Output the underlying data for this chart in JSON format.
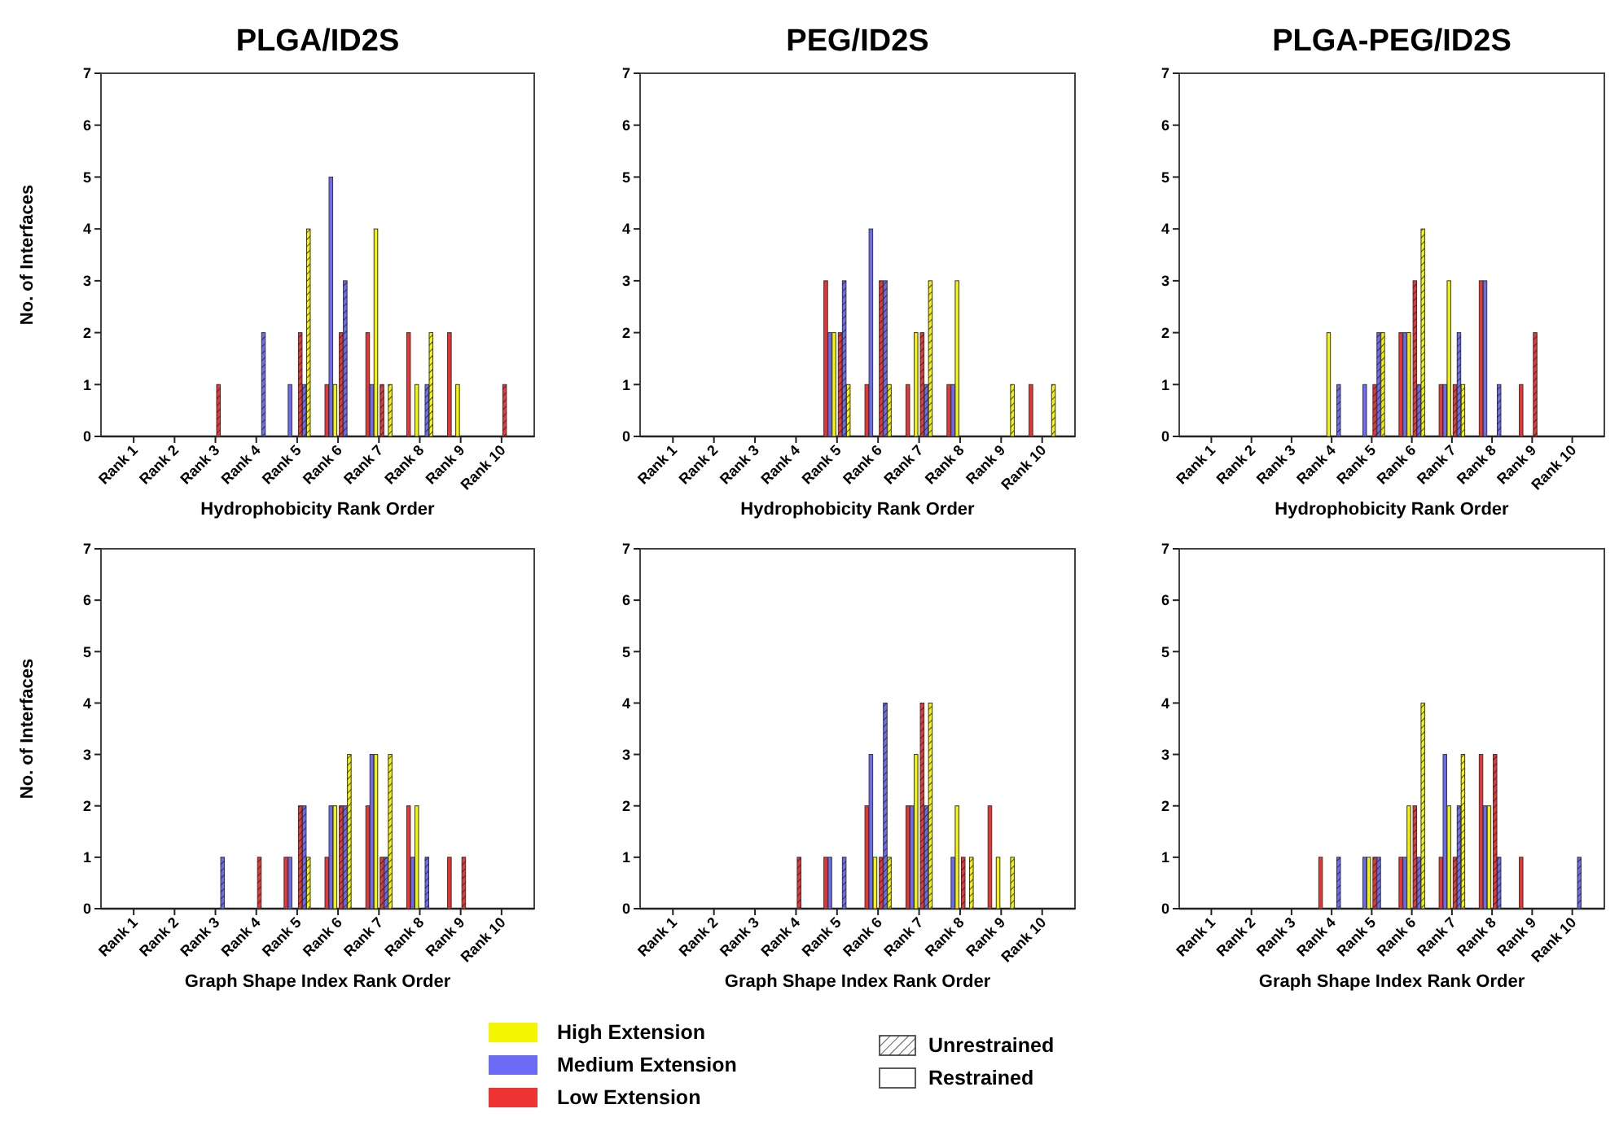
{
  "chart_data": [
    {
      "type": "bar",
      "title": "PLGA/ID2S",
      "xlabel": "Hydrophobicity Rank Order",
      "ylabel": "No. of Interfaces",
      "categories": [
        "Rank 1",
        "Rank 2",
        "Rank 3",
        "Rank 4",
        "Rank 5",
        "Rank 6",
        "Rank 7",
        "Rank 8",
        "Rank 9",
        "Rank 10"
      ],
      "ylim": [
        0,
        7
      ],
      "yticks": [
        0,
        1,
        2,
        3,
        4,
        5,
        6,
        7
      ],
      "legend": "bottom",
      "annotations": [
        "Unrestrained",
        "Restrained"
      ],
      "series": [
        {
          "name": "Low Extension",
          "color": "#ee3333",
          "values": [
            null,
            null,
            null,
            null,
            null,
            1,
            2,
            2,
            2,
            null
          ]
        },
        {
          "name": "Medium Extension",
          "color": "#6b6bf5",
          "values": [
            null,
            null,
            null,
            null,
            1,
            5,
            1,
            null,
            null,
            null
          ]
        },
        {
          "name": "High Extension",
          "color": "#f5f500",
          "values": [
            null,
            null,
            null,
            null,
            null,
            1,
            4,
            1,
            1,
            null
          ]
        },
        {
          "color": "#ee3333",
          "values": [
            null,
            null,
            1,
            null,
            2,
            2,
            1,
            null,
            null,
            1
          ]
        },
        {
          "color": "#6b6bf5",
          "values": [
            null,
            null,
            null,
            2,
            1,
            3,
            null,
            1,
            null,
            null
          ]
        },
        {
          "color": "#f5f500",
          "values": [
            null,
            null,
            null,
            null,
            4,
            null,
            1,
            2,
            null,
            null
          ]
        }
      ]
    },
    {
      "type": "bar",
      "title": "PEG/ID2S",
      "xlabel": "Hydrophobicity Rank Order",
      "categories": [
        "Rank 1",
        "Rank 2",
        "Rank 3",
        "Rank 4",
        "Rank 5",
        "Rank 6",
        "Rank 7",
        "Rank 8",
        "Rank 9",
        "Rank 10"
      ],
      "ylim": [
        0,
        7
      ],
      "yticks": [
        0,
        1,
        2,
        3,
        4,
        5,
        6,
        7
      ],
      "series": [
        {
          "color": "#ee3333",
          "values": [
            null,
            null,
            null,
            null,
            3,
            1,
            1,
            1,
            null,
            1
          ]
        },
        {
          "color": "#6b6bf5",
          "values": [
            null,
            null,
            null,
            null,
            2,
            4,
            null,
            1,
            null,
            null
          ]
        },
        {
          "color": "#f5f500",
          "values": [
            null,
            null,
            null,
            null,
            2,
            null,
            2,
            3,
            null,
            null
          ]
        },
        {
          "color": "#ee3333",
          "values": [
            null,
            null,
            null,
            null,
            2,
            3,
            2,
            null,
            null,
            null
          ]
        },
        {
          "color": "#6b6bf5",
          "values": [
            null,
            null,
            null,
            null,
            3,
            3,
            1,
            null,
            null,
            null
          ]
        },
        {
          "color": "#f5f500",
          "values": [
            null,
            null,
            null,
            null,
            1,
            1,
            3,
            null,
            1,
            1
          ]
        }
      ]
    },
    {
      "type": "bar",
      "title": "PLGA-PEG/ID2S",
      "xlabel": "Hydrophobicity Rank Order",
      "categories": [
        "Rank 1",
        "Rank 2",
        "Rank 3",
        "Rank 4",
        "Rank 5",
        "Rank 6",
        "Rank 7",
        "Rank 8",
        "Rank 9",
        "Rank 10"
      ],
      "ylim": [
        0,
        7
      ],
      "yticks": [
        0,
        1,
        2,
        3,
        4,
        5,
        6,
        7
      ],
      "series": [
        {
          "color": "#ee3333",
          "values": [
            null,
            null,
            null,
            null,
            null,
            2,
            1,
            3,
            1,
            null
          ]
        },
        {
          "color": "#6b6bf5",
          "values": [
            null,
            null,
            null,
            null,
            1,
            2,
            1,
            3,
            null,
            null
          ]
        },
        {
          "color": "#f5f500",
          "values": [
            null,
            null,
            null,
            2,
            null,
            2,
            3,
            null,
            null,
            null
          ]
        },
        {
          "color": "#ee3333",
          "values": [
            null,
            null,
            null,
            null,
            1,
            3,
            1,
            null,
            2,
            null
          ]
        },
        {
          "color": "#6b6bf5",
          "values": [
            null,
            null,
            null,
            1,
            2,
            1,
            2,
            1,
            null,
            null
          ]
        },
        {
          "color": "#f5f500",
          "values": [
            null,
            null,
            null,
            null,
            2,
            4,
            1,
            null,
            null,
            null
          ]
        }
      ]
    },
    {
      "type": "bar",
      "xlabel": "Graph Shape Index Rank Order",
      "ylabel": "No. of Interfaces",
      "categories": [
        "Rank 1",
        "Rank 2",
        "Rank 3",
        "Rank 4",
        "Rank 5",
        "Rank 6",
        "Rank 7",
        "Rank 8",
        "Rank 9",
        "Rank 10"
      ],
      "ylim": [
        0,
        7
      ],
      "yticks": [
        0,
        1,
        2,
        3,
        4,
        5,
        6,
        7
      ],
      "series": [
        {
          "color": "#ee3333",
          "values": [
            null,
            null,
            null,
            null,
            1,
            1,
            2,
            2,
            1,
            null
          ]
        },
        {
          "color": "#6b6bf5",
          "values": [
            null,
            null,
            null,
            null,
            1,
            2,
            3,
            1,
            null,
            null
          ]
        },
        {
          "color": "#f5f500",
          "values": [
            null,
            null,
            null,
            null,
            null,
            2,
            3,
            2,
            null,
            null
          ]
        },
        {
          "color": "#ee3333",
          "values": [
            null,
            null,
            null,
            1,
            2,
            2,
            1,
            null,
            1,
            null
          ]
        },
        {
          "color": "#6b6bf5",
          "values": [
            null,
            null,
            1,
            null,
            2,
            2,
            1,
            1,
            null,
            null
          ]
        },
        {
          "color": "#f5f500",
          "values": [
            null,
            null,
            null,
            null,
            1,
            3,
            3,
            null,
            null,
            null
          ]
        }
      ]
    },
    {
      "type": "bar",
      "xlabel": "Graph Shape Index Rank Order",
      "categories": [
        "Rank 1",
        "Rank 2",
        "Rank 3",
        "Rank 4",
        "Rank 5",
        "Rank 6",
        "Rank 7",
        "Rank 8",
        "Rank 9",
        "Rank 10"
      ],
      "ylim": [
        0,
        7
      ],
      "yticks": [
        0,
        1,
        2,
        3,
        4,
        5,
        6,
        7
      ],
      "series": [
        {
          "color": "#ee3333",
          "values": [
            null,
            null,
            null,
            null,
            1,
            2,
            2,
            null,
            2,
            null
          ]
        },
        {
          "color": "#6b6bf5",
          "values": [
            null,
            null,
            null,
            null,
            1,
            3,
            2,
            1,
            null,
            null
          ]
        },
        {
          "color": "#f5f500",
          "values": [
            null,
            null,
            null,
            null,
            null,
            1,
            3,
            2,
            1,
            null
          ]
        },
        {
          "color": "#ee3333",
          "values": [
            null,
            null,
            null,
            1,
            null,
            1,
            4,
            1,
            null,
            null
          ]
        },
        {
          "color": "#6b6bf5",
          "values": [
            null,
            null,
            null,
            null,
            1,
            4,
            2,
            null,
            null,
            null
          ]
        },
        {
          "color": "#f5f500",
          "values": [
            null,
            null,
            null,
            null,
            null,
            1,
            4,
            1,
            1,
            null
          ]
        }
      ]
    },
    {
      "type": "bar",
      "xlabel": "Graph Shape Index Rank Order",
      "categories": [
        "Rank 1",
        "Rank 2",
        "Rank 3",
        "Rank 4",
        "Rank 5",
        "Rank 6",
        "Rank 7",
        "Rank 8",
        "Rank 9",
        "Rank 10"
      ],
      "ylim": [
        0,
        7
      ],
      "yticks": [
        0,
        1,
        2,
        3,
        4,
        5,
        6,
        7
      ],
      "series": [
        {
          "color": "#ee3333",
          "values": [
            null,
            null,
            null,
            1,
            null,
            1,
            1,
            3,
            1,
            null
          ]
        },
        {
          "color": "#6b6bf5",
          "values": [
            null,
            null,
            null,
            null,
            1,
            1,
            3,
            2,
            null,
            null
          ]
        },
        {
          "color": "#f5f500",
          "values": [
            null,
            null,
            null,
            null,
            1,
            2,
            2,
            2,
            null,
            null
          ]
        },
        {
          "color": "#ee3333",
          "values": [
            null,
            null,
            null,
            null,
            1,
            2,
            1,
            3,
            null,
            null
          ]
        },
        {
          "color": "#6b6bf5",
          "values": [
            null,
            null,
            null,
            1,
            1,
            1,
            2,
            1,
            null,
            1
          ]
        },
        {
          "color": "#f5f500",
          "values": [
            null,
            null,
            null,
            null,
            null,
            4,
            3,
            null,
            null,
            null
          ]
        }
      ]
    }
  ]
}
